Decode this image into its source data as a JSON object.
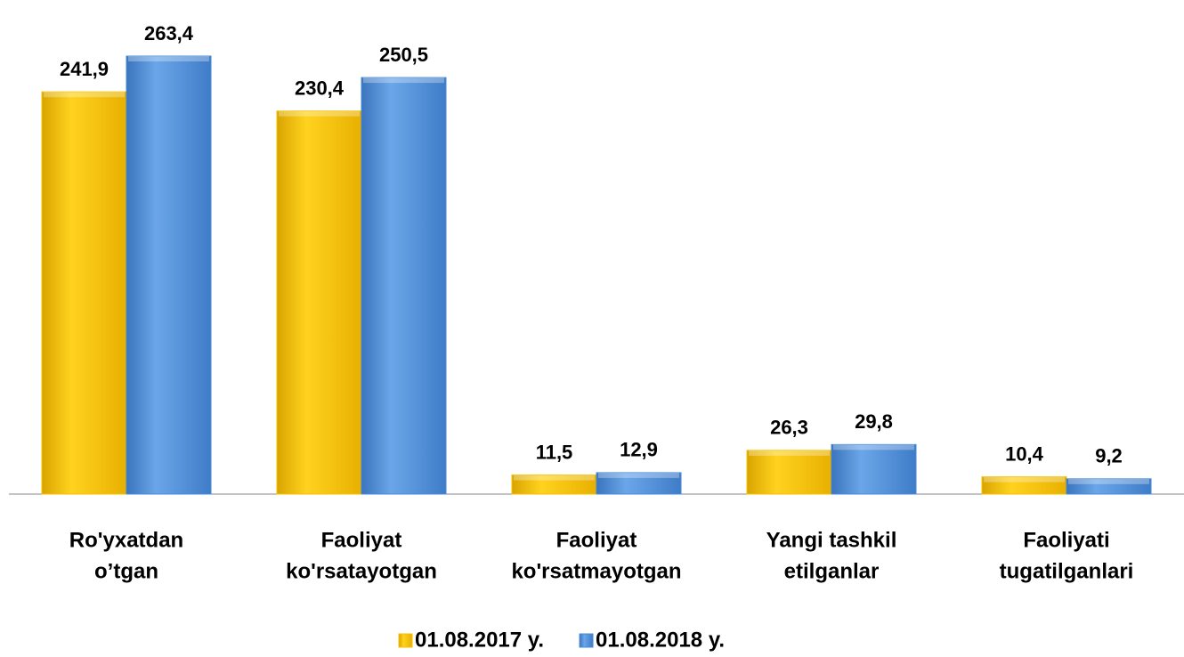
{
  "chart_data": {
    "type": "bar",
    "categories": [
      [
        "Ro'yxatdan",
        "o’tgan"
      ],
      [
        "Faoliyat",
        "ko'rsatayotgan"
      ],
      [
        "Faoliyat",
        "ko'rsatmayotgan"
      ],
      [
        "Yangi tashkil",
        "etilganlar"
      ],
      [
        "Faoliyati",
        "tugatilganlari"
      ]
    ],
    "series": [
      {
        "name": "01.08.2017 y.",
        "color": "#f5c000",
        "values": [
          241.9,
          230.4,
          11.5,
          26.3,
          10.4
        ],
        "value_labels": [
          "241,9",
          "230,4",
          "11,5",
          "26,3",
          "10,4"
        ]
      },
      {
        "name": "01.08.2018 y.",
        "color": "#4a8ad6",
        "values": [
          263.4,
          250.5,
          12.9,
          29.8,
          9.2
        ],
        "value_labels": [
          "263,4",
          "250,5",
          "12,9",
          "29,8",
          "9,2"
        ]
      }
    ],
    "ylim": [
      0,
      280
    ],
    "grid": false,
    "legend": "bottom"
  }
}
